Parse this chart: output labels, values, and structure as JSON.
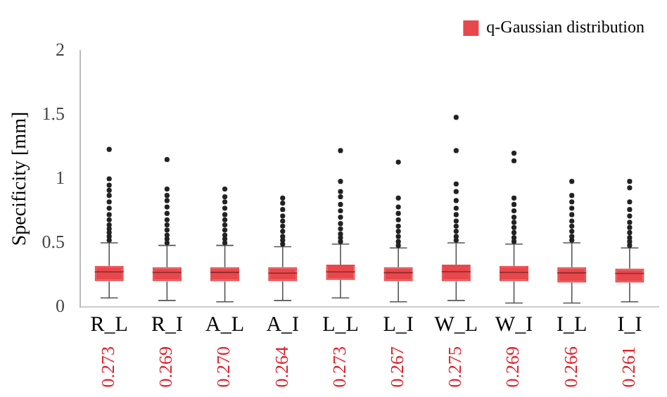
{
  "chart_data": {
    "type": "box",
    "ylabel": "Specificity [mm]",
    "categories": [
      "R_L",
      "R_I",
      "A_L",
      "A_I",
      "L_L",
      "L_I",
      "W_L",
      "W_I",
      "I_L",
      "I_I"
    ],
    "ylim": [
      0,
      2
    ],
    "yticks": [
      0,
      0.5,
      1,
      1.5,
      2
    ],
    "grid": false,
    "legend": "top right",
    "series": [
      {
        "name": "q-Gaussian distribution",
        "color": "#e8474c",
        "boxes": [
          {
            "low": 0.07,
            "q1": 0.2,
            "median": 0.273,
            "q3": 0.32,
            "high": 0.5,
            "outliers": [
              0.52,
              0.55,
              0.58,
              0.61,
              0.64,
              0.68,
              0.72,
              0.77,
              0.82,
              0.87,
              0.91,
              0.95,
              1.0,
              1.23
            ]
          },
          {
            "low": 0.05,
            "q1": 0.2,
            "median": 0.269,
            "q3": 0.31,
            "high": 0.48,
            "outliers": [
              0.5,
              0.53,
              0.56,
              0.6,
              0.64,
              0.68,
              0.73,
              0.78,
              0.83,
              0.87,
              0.92,
              1.15
            ]
          },
          {
            "low": 0.04,
            "q1": 0.2,
            "median": 0.27,
            "q3": 0.31,
            "high": 0.48,
            "outliers": [
              0.5,
              0.53,
              0.56,
              0.6,
              0.64,
              0.68,
              0.72,
              0.77,
              0.82,
              0.86,
              0.92
            ]
          },
          {
            "low": 0.05,
            "q1": 0.2,
            "median": 0.264,
            "q3": 0.31,
            "high": 0.47,
            "outliers": [
              0.49,
              0.52,
              0.55,
              0.59,
              0.63,
              0.67,
              0.71,
              0.76,
              0.81,
              0.85
            ]
          },
          {
            "low": 0.07,
            "q1": 0.21,
            "median": 0.273,
            "q3": 0.33,
            "high": 0.49,
            "outliers": [
              0.51,
              0.54,
              0.57,
              0.61,
              0.65,
              0.7,
              0.75,
              0.8,
              0.86,
              0.9,
              0.98,
              1.22
            ]
          },
          {
            "low": 0.04,
            "q1": 0.2,
            "median": 0.267,
            "q3": 0.31,
            "high": 0.46,
            "outliers": [
              0.48,
              0.51,
              0.55,
              0.59,
              0.63,
              0.68,
              0.73,
              0.78,
              0.85,
              1.13
            ]
          },
          {
            "low": 0.05,
            "q1": 0.2,
            "median": 0.275,
            "q3": 0.33,
            "high": 0.5,
            "outliers": [
              0.52,
              0.55,
              0.59,
              0.63,
              0.67,
              0.72,
              0.77,
              0.83,
              0.9,
              0.96,
              1.22,
              1.48
            ]
          },
          {
            "low": 0.03,
            "q1": 0.2,
            "median": 0.269,
            "q3": 0.32,
            "high": 0.49,
            "outliers": [
              0.51,
              0.54,
              0.58,
              0.62,
              0.66,
              0.7,
              0.75,
              0.8,
              0.85,
              1.14,
              1.2
            ]
          },
          {
            "low": 0.03,
            "q1": 0.19,
            "median": 0.266,
            "q3": 0.31,
            "high": 0.5,
            "outliers": [
              0.52,
              0.55,
              0.59,
              0.63,
              0.67,
              0.72,
              0.77,
              0.82,
              0.87,
              0.98
            ]
          },
          {
            "low": 0.04,
            "q1": 0.19,
            "median": 0.261,
            "q3": 0.3,
            "high": 0.46,
            "outliers": [
              0.48,
              0.51,
              0.54,
              0.58,
              0.62,
              0.66,
              0.71,
              0.76,
              0.82,
              0.93,
              0.98
            ]
          }
        ]
      }
    ],
    "annotations": [
      "0.273",
      "0.269",
      "0.270",
      "0.264",
      "0.273",
      "0.267",
      "0.275",
      "0.269",
      "0.266",
      "0.261"
    ]
  }
}
